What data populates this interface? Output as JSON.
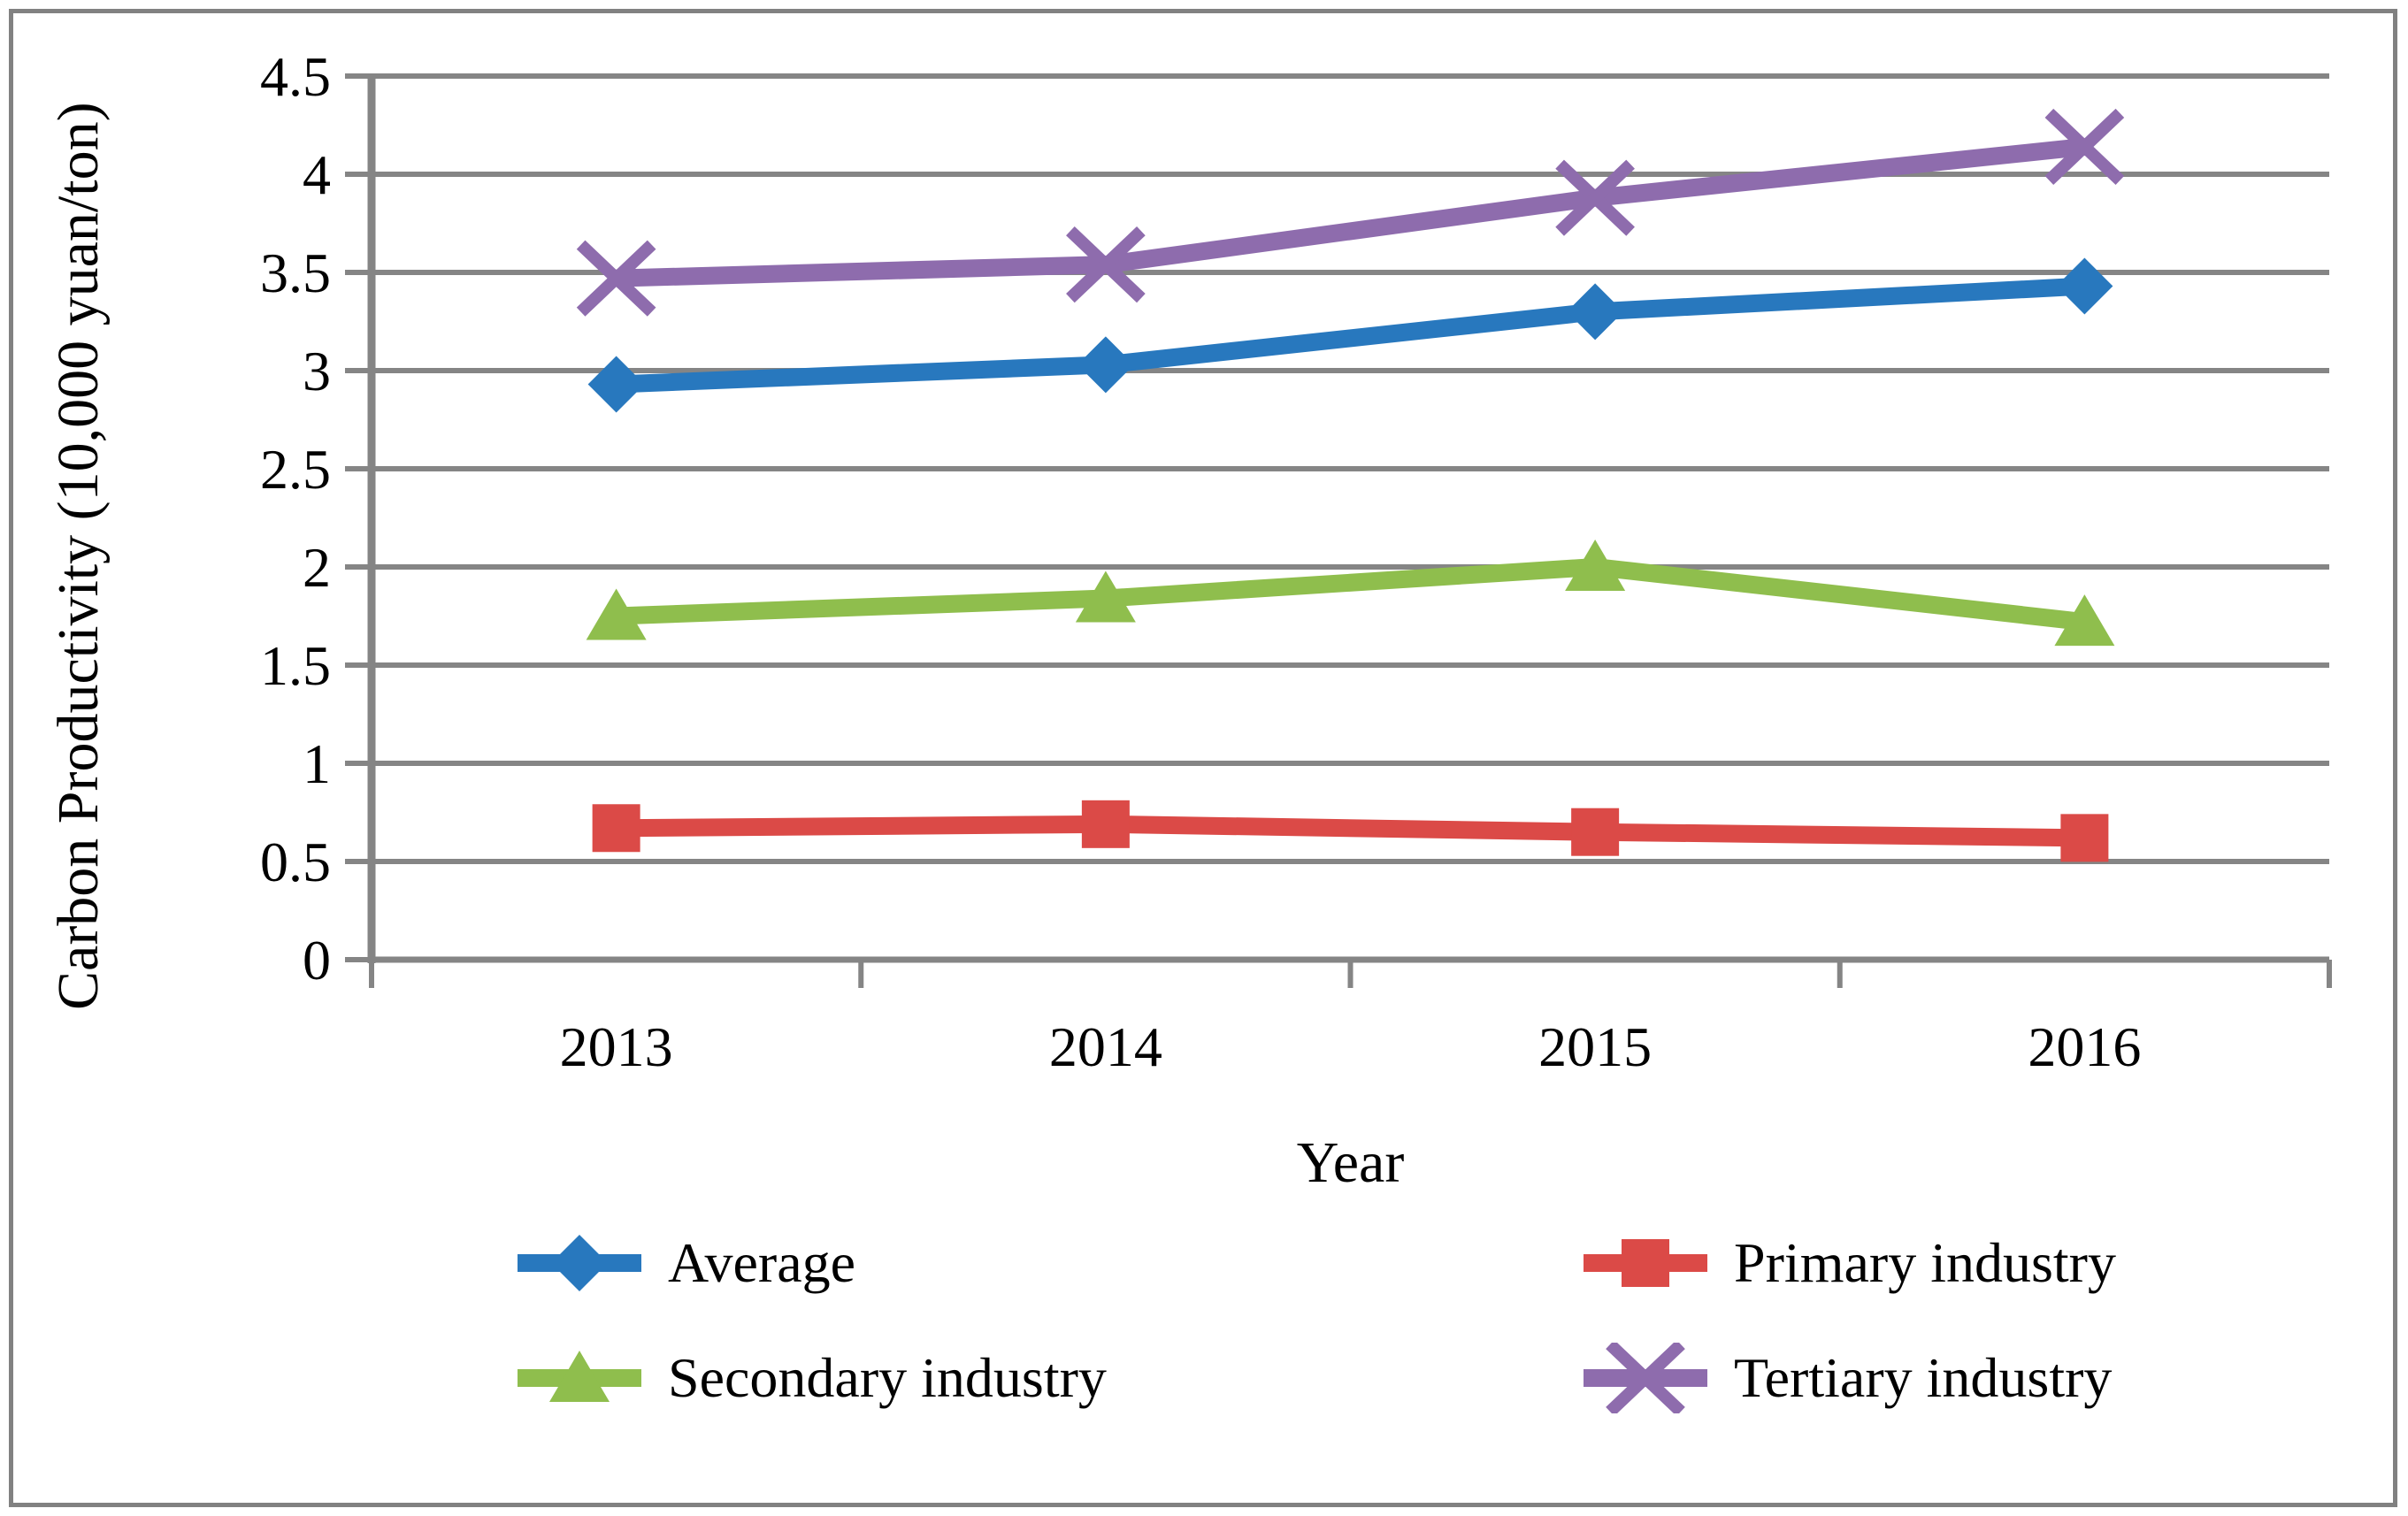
{
  "figure": {
    "background": "#ffffff",
    "border_color": "#818181"
  },
  "chart_data": {
    "type": "line",
    "title": "",
    "xlabel": "Year",
    "ylabel": "Carbon Productivity (10,000 yuan/ton)",
    "categories": [
      "2013",
      "2014",
      "2015",
      "2016"
    ],
    "ylim": [
      0,
      4.5
    ],
    "ytick_step": 0.5,
    "ytick_labels": [
      "0",
      "0.5",
      "1",
      "1.5",
      "2",
      "2.5",
      "3",
      "3.5",
      "4",
      "4.5"
    ],
    "grid": true,
    "gridline_color": "#858585",
    "axis_color": "#858585",
    "legend_position": "bottom",
    "series": [
      {
        "name": "Average",
        "color": "#2878BE",
        "marker": "diamond",
        "values": [
          2.93,
          3.03,
          3.3,
          3.43
        ]
      },
      {
        "name": "Primary industry",
        "color": "#DB4A47",
        "marker": "square",
        "values": [
          0.67,
          0.69,
          0.65,
          0.62
        ]
      },
      {
        "name": "Secondary industry",
        "color": "#8FBE4D",
        "marker": "triangle",
        "values": [
          1.75,
          1.84,
          2.0,
          1.72
        ]
      },
      {
        "name": "Tertiary industry",
        "color": "#8E6CAD",
        "marker": "x",
        "values": [
          3.47,
          3.54,
          3.88,
          4.14
        ]
      }
    ]
  }
}
